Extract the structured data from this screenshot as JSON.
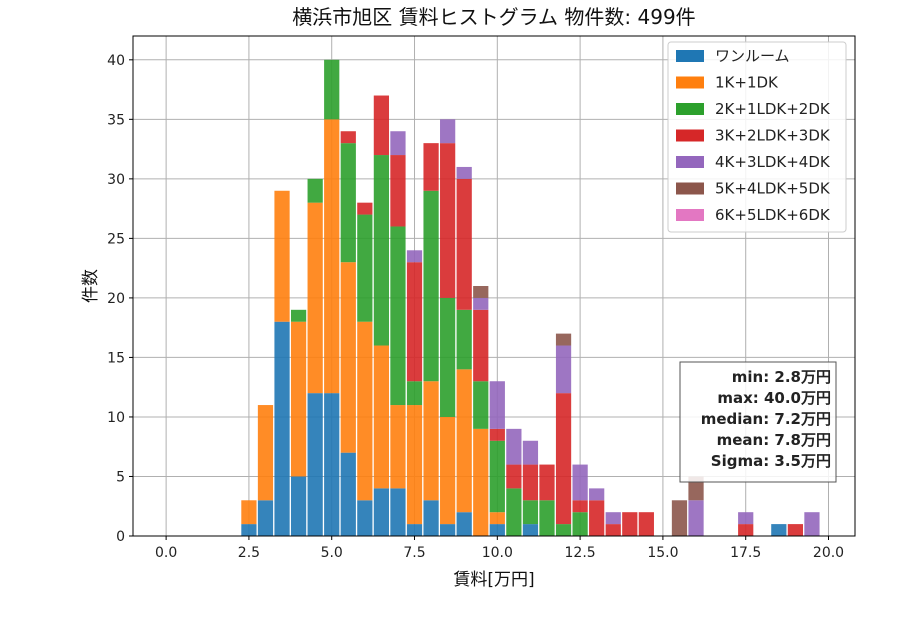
{
  "chart_data": {
    "type": "bar",
    "stacked": true,
    "title": "横浜市旭区 賃料ヒストグラム 物件数: 499件",
    "xlabel": "賃料[万円]",
    "ylabel": "件数",
    "xlim": [
      -1.0,
      20.8
    ],
    "ylim": [
      0,
      42
    ],
    "grid": true,
    "legend_position": "top-right",
    "bin_width": 0.5,
    "x_ticks": [
      0.0,
      2.5,
      5.0,
      7.5,
      10.0,
      12.5,
      15.0,
      17.5,
      20.0
    ],
    "x_tick_labels": [
      "0.0",
      "2.5",
      "5.0",
      "7.5",
      "10.0",
      "12.5",
      "15.0",
      "17.5",
      "20.0"
    ],
    "y_ticks": [
      0,
      5,
      10,
      15,
      20,
      25,
      30,
      35,
      40
    ],
    "y_tick_labels": [
      "0",
      "5",
      "10",
      "15",
      "20",
      "25",
      "30",
      "35",
      "40"
    ],
    "bins": [
      2.5,
      3.0,
      3.5,
      4.0,
      4.5,
      5.0,
      5.5,
      6.0,
      6.5,
      7.0,
      7.5,
      8.0,
      8.5,
      9.0,
      9.5,
      10.0,
      10.5,
      11.0,
      11.5,
      12.0,
      12.5,
      13.0,
      13.5,
      14.0,
      14.5,
      15.0,
      15.5,
      16.0,
      16.5,
      17.0,
      17.5,
      18.0,
      18.5,
      19.0,
      19.5
    ],
    "series": [
      {
        "name": "ワンルーム",
        "color": "#1f77b4",
        "values": [
          1,
          3,
          18,
          5,
          12,
          12,
          7,
          3,
          4,
          4,
          1,
          3,
          1,
          2,
          0,
          1,
          0,
          1,
          0,
          0,
          0,
          0,
          0,
          0,
          0,
          0,
          0,
          0,
          0,
          0,
          0,
          0,
          1,
          0,
          0
        ]
      },
      {
        "name": "1K+1DK",
        "color": "#ff7f0e",
        "values": [
          2,
          8,
          11,
          13,
          16,
          23,
          16,
          15,
          12,
          7,
          10,
          10,
          9,
          12,
          9,
          1,
          0,
          0,
          0,
          0,
          0,
          0,
          0,
          0,
          0,
          0,
          0,
          0,
          0,
          0,
          0,
          0,
          0,
          0,
          0
        ]
      },
      {
        "name": "2K+1LDK+2DK",
        "color": "#2ca02c",
        "values": [
          0,
          0,
          0,
          1,
          2,
          5,
          10,
          9,
          16,
          15,
          2,
          16,
          10,
          5,
          4,
          6,
          4,
          2,
          3,
          1,
          2,
          0,
          0,
          0,
          0,
          0,
          0,
          0,
          0,
          0,
          0,
          0,
          0,
          0,
          0
        ]
      },
      {
        "name": "3K+2LDK+3DK",
        "color": "#d62728",
        "values": [
          0,
          0,
          0,
          0,
          0,
          0,
          1,
          1,
          5,
          6,
          10,
          4,
          13,
          11,
          6,
          1,
          2,
          3,
          3,
          11,
          1,
          3,
          1,
          2,
          2,
          0,
          0,
          0,
          0,
          0,
          1,
          0,
          0,
          1,
          0
        ]
      },
      {
        "name": "4K+3LDK+4DK",
        "color": "#9467bd",
        "values": [
          0,
          0,
          0,
          0,
          0,
          0,
          0,
          0,
          0,
          2,
          1,
          0,
          2,
          1,
          1,
          4,
          3,
          2,
          0,
          4,
          3,
          1,
          1,
          0,
          0,
          0,
          0,
          3,
          0,
          0,
          1,
          0,
          0,
          0,
          2
        ]
      },
      {
        "name": "5K+4LDK+5DK",
        "color": "#8c564b",
        "values": [
          0,
          0,
          0,
          0,
          0,
          0,
          0,
          0,
          0,
          0,
          0,
          0,
          0,
          0,
          1,
          0,
          0,
          0,
          0,
          1,
          0,
          0,
          0,
          0,
          0,
          0,
          3,
          2,
          0,
          0,
          0,
          0,
          0,
          0,
          0
        ]
      },
      {
        "name": "6K+5LDK+6DK",
        "color": "#e377c2",
        "values": [
          0,
          0,
          0,
          0,
          0,
          0,
          0,
          0,
          0,
          0,
          0,
          0,
          0,
          0,
          0,
          0,
          0,
          0,
          0,
          0,
          0,
          0,
          0,
          0,
          0,
          0,
          0,
          0,
          0,
          0,
          0,
          0,
          0,
          0,
          0
        ]
      }
    ],
    "stats_box": {
      "position": "right",
      "lines": [
        "min: 2.8万円",
        "max: 40.0万円",
        "median: 7.2万円",
        "mean: 7.8万円",
        "Sigma: 3.5万円"
      ]
    }
  }
}
